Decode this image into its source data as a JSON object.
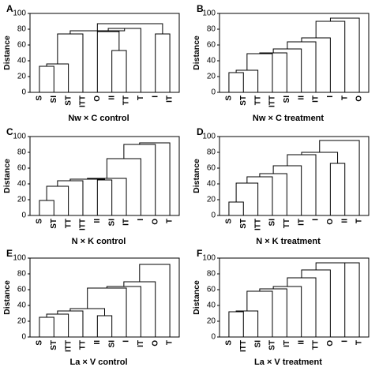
{
  "chart_data": [
    {
      "type": "dendrogram",
      "panel": "A",
      "title": "Nw × C control",
      "ylabel": "Distance",
      "ylim": [
        0,
        100
      ],
      "yticks": [
        0,
        20,
        40,
        60,
        80,
        100
      ],
      "leaves": [
        "S",
        "SI",
        "ST",
        "ITT",
        "O",
        "II",
        "TT",
        "T",
        "I",
        "IT"
      ],
      "merges": [
        {
          "id": "m1",
          "a": "L0",
          "b": "L1",
          "h": 33
        },
        {
          "id": "m2",
          "a": "m1",
          "b": "L2",
          "h": 36
        },
        {
          "id": "m3",
          "a": "L5",
          "b": "L6",
          "h": 53
        },
        {
          "id": "m4",
          "a": "L8",
          "b": "L9",
          "h": 74
        },
        {
          "id": "m5",
          "a": "m2",
          "b": "L3",
          "h": 74
        },
        {
          "id": "m6",
          "a": "L4",
          "b": "m3",
          "h": 77
        },
        {
          "id": "m7",
          "a": "m6",
          "b": "L7",
          "h": 81
        },
        {
          "id": "m8",
          "a": "m5",
          "b": "m7",
          "h": 78
        },
        {
          "id": "m9",
          "a": "m8",
          "b": "m4",
          "h": 87
        }
      ]
    },
    {
      "type": "dendrogram",
      "panel": "B",
      "title": "Nw × C treatment",
      "ylabel": "Distance",
      "ylim": [
        0,
        100
      ],
      "yticks": [
        0,
        20,
        40,
        60,
        80,
        100
      ],
      "leaves": [
        "S",
        "ST",
        "TT",
        "ITT",
        "SI",
        "II",
        "IT",
        "I",
        "T",
        "O"
      ],
      "merges": [
        {
          "id": "m1",
          "a": "L0",
          "b": "L1",
          "h": 25
        },
        {
          "id": "m2",
          "a": "m1",
          "b": "L2",
          "h": 28
        },
        {
          "id": "m3",
          "a": "m2",
          "b": "L3",
          "h": 49
        },
        {
          "id": "m4",
          "a": "m3",
          "b": "L4",
          "h": 50
        },
        {
          "id": "m5",
          "a": "m4",
          "b": "L5",
          "h": 55
        },
        {
          "id": "m6",
          "a": "m5",
          "b": "L6",
          "h": 64
        },
        {
          "id": "m7",
          "a": "m6",
          "b": "L7",
          "h": 69
        },
        {
          "id": "m8",
          "a": "m7",
          "b": "L8",
          "h": 90
        },
        {
          "id": "m9",
          "a": "m8",
          "b": "L9",
          "h": 94
        }
      ]
    },
    {
      "type": "dendrogram",
      "panel": "C",
      "title": "N × K control",
      "ylabel": "Distance",
      "ylim": [
        0,
        100
      ],
      "yticks": [
        0,
        20,
        40,
        60,
        80,
        100
      ],
      "leaves": [
        "S",
        "ST",
        "TT",
        "ITT",
        "II",
        "SI",
        "IT",
        "I",
        "O",
        "T"
      ],
      "merges": [
        {
          "id": "m1",
          "a": "L0",
          "b": "L1",
          "h": 19
        },
        {
          "id": "m2",
          "a": "m1",
          "b": "L2",
          "h": 37
        },
        {
          "id": "m3",
          "a": "m2",
          "b": "L3",
          "h": 44
        },
        {
          "id": "m4",
          "a": "L4",
          "b": "L5",
          "h": 45
        },
        {
          "id": "m5",
          "a": "m3",
          "b": "m4",
          "h": 46
        },
        {
          "id": "m6",
          "a": "m5",
          "b": "L6",
          "h": 47
        },
        {
          "id": "m7",
          "a": "m6",
          "b": "L7",
          "h": 72
        },
        {
          "id": "m8",
          "a": "m7",
          "b": "L8",
          "h": 90
        },
        {
          "id": "m9",
          "a": "m8",
          "b": "L9",
          "h": 92
        }
      ]
    },
    {
      "type": "dendrogram",
      "panel": "D",
      "title": "N × K treatment",
      "ylabel": "Distance",
      "ylim": [
        0,
        100
      ],
      "yticks": [
        0,
        20,
        40,
        60,
        80,
        100
      ],
      "leaves": [
        "S",
        "ST",
        "ITT",
        "SI",
        "TT",
        "IT",
        "I",
        "O",
        "II",
        "T"
      ],
      "merges": [
        {
          "id": "m1",
          "a": "L0",
          "b": "L1",
          "h": 17
        },
        {
          "id": "m2",
          "a": "m1",
          "b": "L2",
          "h": 41
        },
        {
          "id": "m3",
          "a": "m2",
          "b": "L3",
          "h": 49
        },
        {
          "id": "m4",
          "a": "m3",
          "b": "L4",
          "h": 53
        },
        {
          "id": "m5",
          "a": "m4",
          "b": "L5",
          "h": 63
        },
        {
          "id": "m6",
          "a": "L7",
          "b": "L8",
          "h": 66
        },
        {
          "id": "m7",
          "a": "m5",
          "b": "L6",
          "h": 77
        },
        {
          "id": "m8",
          "a": "m7",
          "b": "m6",
          "h": 80
        },
        {
          "id": "m9",
          "a": "m8",
          "b": "L9",
          "h": 95
        }
      ]
    },
    {
      "type": "dendrogram",
      "panel": "E",
      "title": "La × V control",
      "ylabel": "Distance",
      "ylim": [
        0,
        100
      ],
      "yticks": [
        0,
        20,
        40,
        60,
        80,
        100
      ],
      "leaves": [
        "S",
        "ST",
        "ITT",
        "TT",
        "II",
        "SI",
        "I",
        "IT",
        "O",
        "T"
      ],
      "merges": [
        {
          "id": "m1",
          "a": "L0",
          "b": "L1",
          "h": 25
        },
        {
          "id": "m2",
          "a": "m1",
          "b": "L2",
          "h": 29
        },
        {
          "id": "m3",
          "a": "L4",
          "b": "L5",
          "h": 27
        },
        {
          "id": "m4",
          "a": "m2",
          "b": "L3",
          "h": 33
        },
        {
          "id": "m5",
          "a": "m4",
          "b": "m3",
          "h": 36
        },
        {
          "id": "m6",
          "a": "m5",
          "b": "L6",
          "h": 62
        },
        {
          "id": "m7",
          "a": "m6",
          "b": "L7",
          "h": 64
        },
        {
          "id": "m8",
          "a": "m7",
          "b": "L8",
          "h": 70
        },
        {
          "id": "m9",
          "a": "m8",
          "b": "L9",
          "h": 92
        }
      ]
    },
    {
      "type": "dendrogram",
      "panel": "F",
      "title": "La × V treatment",
      "ylabel": "Distance",
      "ylim": [
        0,
        100
      ],
      "yticks": [
        0,
        20,
        40,
        60,
        80,
        100
      ],
      "leaves": [
        "S",
        "ITT",
        "SI",
        "ST",
        "IT",
        "II",
        "TT",
        "O",
        "I",
        "T"
      ],
      "merges": [
        {
          "id": "m1",
          "a": "L0",
          "b": "L1",
          "h": 32
        },
        {
          "id": "m2",
          "a": "m1",
          "b": "L2",
          "h": 33
        },
        {
          "id": "m3",
          "a": "m2",
          "b": "L3",
          "h": 58
        },
        {
          "id": "m4",
          "a": "m3",
          "b": "L4",
          "h": 61
        },
        {
          "id": "m5",
          "a": "m4",
          "b": "L5",
          "h": 64
        },
        {
          "id": "m6",
          "a": "m5",
          "b": "L6",
          "h": 75
        },
        {
          "id": "m7",
          "a": "m6",
          "b": "L7",
          "h": 85
        },
        {
          "id": "m8",
          "a": "m7",
          "b": "L8",
          "h": 94
        },
        {
          "id": "m9",
          "a": "m8",
          "b": "L9",
          "h": 94
        }
      ]
    }
  ]
}
